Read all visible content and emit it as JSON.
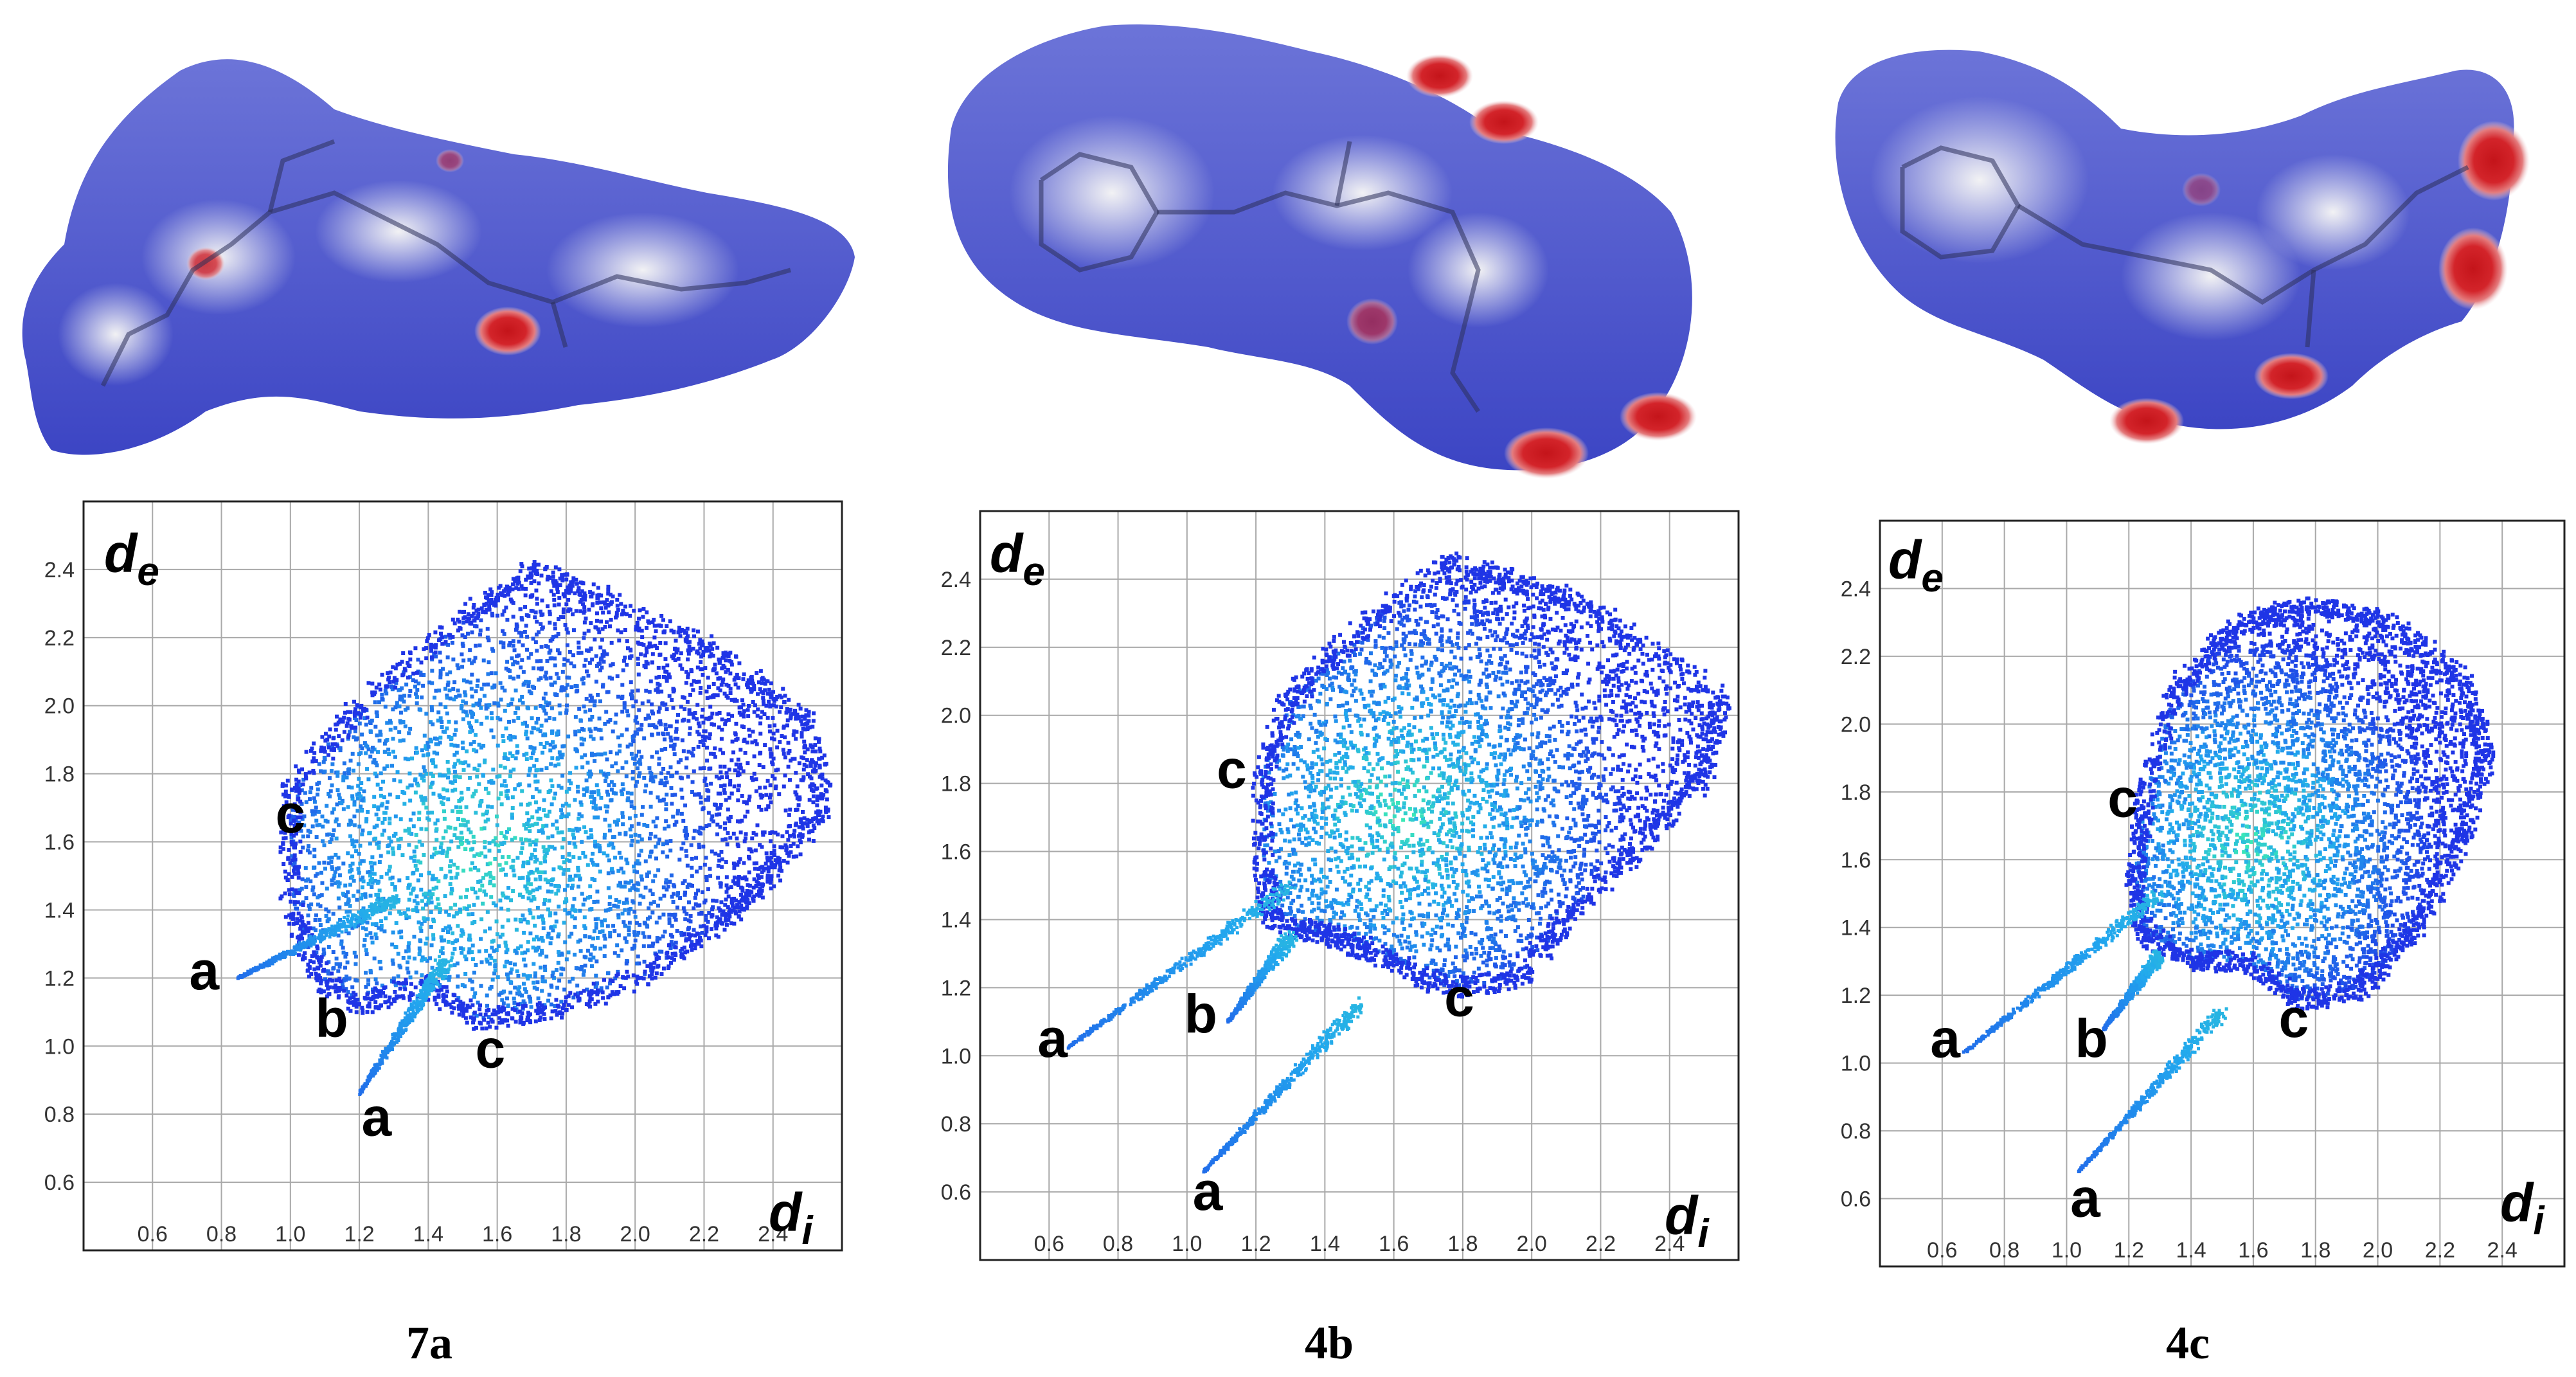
{
  "figure": {
    "panel_labels": [
      "7a",
      "4b",
      "4c"
    ],
    "colors": {
      "surface_base": "#5a63cf",
      "surface_light": "#dfe3f3",
      "contact_spot": "#d3242a",
      "plot_frame": "#222222",
      "grid": "#a9a9a9",
      "fp_low": "#1f35e6",
      "fp_mid": "#22a7ee",
      "fp_high": "#3ef0b0"
    }
  },
  "chart_data": [
    {
      "type": "scatter",
      "panel": "7a",
      "title": "",
      "xlabel": "d",
      "xlabel_sub": "i",
      "ylabel": "d",
      "ylabel_sub": "e",
      "xlim": [
        0.4,
        2.6
      ],
      "ylim": [
        0.4,
        2.6
      ],
      "xticks": [
        "0.6",
        "0.8",
        "1.0",
        "1.2",
        "1.4",
        "1.6",
        "1.8",
        "2.0",
        "2.2",
        "2.4"
      ],
      "yticks": [
        "0.6",
        "0.8",
        "1.0",
        "1.2",
        "1.4",
        "1.6",
        "1.8",
        "2.0",
        "2.2",
        "2.4"
      ],
      "grid": true,
      "region_labels": [
        {
          "text": "c",
          "x": 1.0,
          "y": 1.68
        },
        {
          "text": "a",
          "x": 0.75,
          "y": 1.22
        },
        {
          "text": "b",
          "x": 1.12,
          "y": 1.08
        },
        {
          "text": "c",
          "x": 1.58,
          "y": 0.99
        },
        {
          "text": "a",
          "x": 1.25,
          "y": 0.79
        }
      ],
      "outline": [
        [
          1.0,
          1.75
        ],
        [
          1.2,
          2.0
        ],
        [
          1.5,
          2.25
        ],
        [
          1.7,
          2.4
        ],
        [
          1.95,
          2.3
        ],
        [
          2.25,
          2.15
        ],
        [
          2.5,
          1.95
        ],
        [
          2.55,
          1.7
        ],
        [
          2.4,
          1.52
        ],
        [
          2.3,
          1.4
        ],
        [
          2.05,
          1.22
        ],
        [
          1.75,
          1.1
        ],
        [
          1.55,
          1.08
        ],
        [
          1.38,
          1.18
        ],
        [
          1.2,
          1.12
        ],
        [
          1.08,
          1.2
        ],
        [
          1.0,
          1.45
        ]
      ],
      "spikes": [
        {
          "from": [
            1.3,
            1.43
          ],
          "to": [
            0.85,
            1.2
          ]
        },
        {
          "from": [
            1.45,
            1.25
          ],
          "to": [
            1.2,
            0.86
          ]
        }
      ],
      "dense_center": [
        1.55,
        1.58
      ]
    },
    {
      "type": "scatter",
      "panel": "4b",
      "title": "",
      "xlabel": "d",
      "xlabel_sub": "i",
      "ylabel": "d",
      "ylabel_sub": "e",
      "xlim": [
        0.4,
        2.6
      ],
      "ylim": [
        0.4,
        2.6
      ],
      "xticks": [
        "0.6",
        "0.8",
        "1.0",
        "1.2",
        "1.4",
        "1.6",
        "1.8",
        "2.0",
        "2.2",
        "2.4"
      ],
      "yticks": [
        "0.6",
        "0.8",
        "1.0",
        "1.2",
        "1.4",
        "1.6",
        "1.8",
        "2.0",
        "2.2",
        "2.4"
      ],
      "grid": true,
      "region_labels": [
        {
          "text": "c",
          "x": 1.13,
          "y": 1.84
        },
        {
          "text": "a",
          "x": 0.61,
          "y": 1.05
        },
        {
          "text": "b",
          "x": 1.04,
          "y": 1.12
        },
        {
          "text": "c",
          "x": 1.79,
          "y": 1.17
        },
        {
          "text": "a",
          "x": 1.06,
          "y": 0.6
        }
      ],
      "outline": [
        [
          1.22,
          1.83
        ],
        [
          1.3,
          2.05
        ],
        [
          1.5,
          2.25
        ],
        [
          1.75,
          2.45
        ],
        [
          1.95,
          2.4
        ],
        [
          2.2,
          2.3
        ],
        [
          2.55,
          2.05
        ],
        [
          2.5,
          1.82
        ],
        [
          2.3,
          1.6
        ],
        [
          2.1,
          1.4
        ],
        [
          1.95,
          1.22
        ],
        [
          1.75,
          1.2
        ],
        [
          1.55,
          1.3
        ],
        [
          1.42,
          1.35
        ],
        [
          1.25,
          1.4
        ],
        [
          1.22,
          1.55
        ]
      ],
      "spikes": [
        {
          "from": [
            1.3,
            1.5
          ],
          "to": [
            0.65,
            1.02
          ]
        },
        {
          "from": [
            1.5,
            1.15
          ],
          "to": [
            1.05,
            0.66
          ]
        },
        {
          "from": [
            1.3,
            1.35
          ],
          "to": [
            1.12,
            1.1
          ]
        }
      ],
      "dense_center": [
        1.62,
        1.72
      ]
    },
    {
      "type": "scatter",
      "panel": "4c",
      "title": "",
      "xlabel": "d",
      "xlabel_sub": "i",
      "ylabel": "d",
      "ylabel_sub": "e",
      "xlim": [
        0.4,
        2.6
      ],
      "ylim": [
        0.4,
        2.6
      ],
      "xticks": [
        "0.6",
        "0.8",
        "1.0",
        "1.2",
        "1.4",
        "1.6",
        "1.8",
        "2.0",
        "2.2",
        "2.4"
      ],
      "yticks": [
        "0.6",
        "0.8",
        "1.0",
        "1.2",
        "1.4",
        "1.6",
        "1.8",
        "2.0",
        "2.2",
        "2.4"
      ],
      "grid": true,
      "region_labels": [
        {
          "text": "c",
          "x": 1.18,
          "y": 1.78
        },
        {
          "text": "a",
          "x": 0.61,
          "y": 1.07
        },
        {
          "text": "b",
          "x": 1.08,
          "y": 1.07
        },
        {
          "text": "c",
          "x": 1.73,
          "y": 1.13
        },
        {
          "text": "a",
          "x": 1.06,
          "y": 0.6
        }
      ],
      "outline": [
        [
          1.25,
          1.78
        ],
        [
          1.35,
          2.1
        ],
        [
          1.55,
          2.3
        ],
        [
          1.8,
          2.35
        ],
        [
          2.05,
          2.3
        ],
        [
          2.28,
          2.12
        ],
        [
          2.35,
          1.9
        ],
        [
          2.25,
          1.62
        ],
        [
          2.12,
          1.4
        ],
        [
          1.95,
          1.22
        ],
        [
          1.75,
          1.18
        ],
        [
          1.58,
          1.3
        ],
        [
          1.42,
          1.3
        ],
        [
          1.25,
          1.38
        ],
        [
          1.22,
          1.55
        ]
      ],
      "spikes": [
        {
          "from": [
            1.3,
            1.5
          ],
          "to": [
            0.67,
            1.03
          ]
        },
        {
          "from": [
            1.5,
            1.15
          ],
          "to": [
            1.04,
            0.68
          ]
        },
        {
          "from": [
            1.3,
            1.32
          ],
          "to": [
            1.12,
            1.1
          ]
        }
      ],
      "dense_center": [
        1.6,
        1.66
      ]
    }
  ]
}
